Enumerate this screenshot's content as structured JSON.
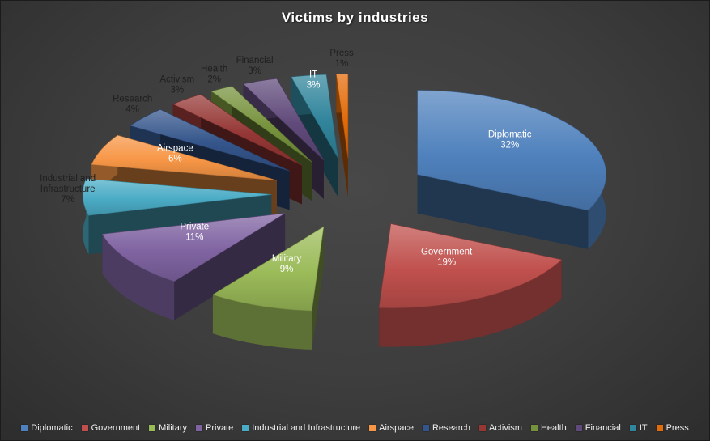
{
  "title": "Victims by industries",
  "chart_data": {
    "type": "pie",
    "style": "3d-exploded-pie",
    "title": "Victims by industries",
    "unit": "percent",
    "start_angle_deg": 0,
    "direction": "clockwise",
    "legend_position": "bottom",
    "slices": [
      {
        "name": "Diplomatic",
        "value": 32,
        "color": "#4F81BD",
        "label_inside": true
      },
      {
        "name": "Government",
        "value": 19,
        "color": "#C0504D",
        "label_inside": true
      },
      {
        "name": "Military",
        "value": 9,
        "color": "#9BBB59",
        "label_inside": true
      },
      {
        "name": "Private",
        "value": 11,
        "color": "#8064A2",
        "label_inside": true
      },
      {
        "name": "Industrial and Infrastructure",
        "value": 7,
        "color": "#4BACC6",
        "label_inside": false
      },
      {
        "name": "Airspace",
        "value": 6,
        "color": "#F79646",
        "label_inside": true
      },
      {
        "name": "Research",
        "value": 4,
        "color": "#34558B",
        "label_inside": false
      },
      {
        "name": "Activism",
        "value": 3,
        "color": "#953735",
        "label_inside": false
      },
      {
        "name": "Health",
        "value": 2,
        "color": "#76923C",
        "label_inside": false
      },
      {
        "name": "Financial",
        "value": 3,
        "color": "#604A7B",
        "label_inside": false
      },
      {
        "name": "IT",
        "value": 3,
        "color": "#31859C",
        "label_inside": true
      },
      {
        "name": "Press",
        "value": 1,
        "color": "#E26B0A",
        "label_inside": false
      }
    ]
  },
  "colors": {
    "background": "#3F3F3F",
    "title_text": "#FFFFFF",
    "legend_text": "#F0F0F0",
    "inside_label_text": "#FFFFFF",
    "outside_label_text": "#1F1F1F"
  }
}
